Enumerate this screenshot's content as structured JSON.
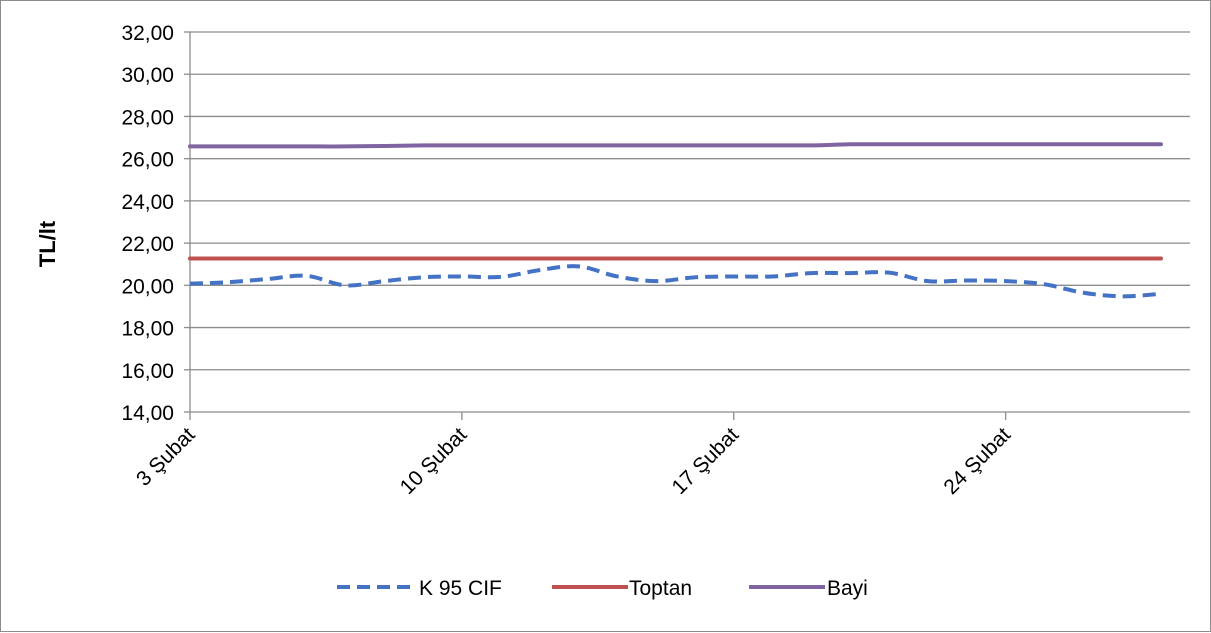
{
  "chart_data": {
    "type": "line",
    "title": "",
    "xlabel": "",
    "ylabel": "TL/lt",
    "ylim": [
      14,
      32
    ],
    "y_tick_step": 2,
    "y_tick_labels": [
      "14,00",
      "16,00",
      "18,00",
      "20,00",
      "22,00",
      "24,00",
      "26,00",
      "28,00",
      "30,00",
      "32,00"
    ],
    "x_tick_labels": [
      "3 Şubat",
      "10 Şubat",
      "17 Şubat",
      "24 Şubat"
    ],
    "x_days": [
      3,
      4,
      5,
      6,
      7,
      8,
      9,
      10,
      11,
      12,
      13,
      14,
      15,
      16,
      17,
      18,
      19,
      20,
      21,
      22,
      23,
      24,
      25,
      26,
      27,
      28
    ],
    "grid": true,
    "legend_position": "bottom",
    "series": [
      {
        "name": "K 95 CIF",
        "color": "#4472C4",
        "style": "dashed",
        "values": [
          20.08,
          20.15,
          20.3,
          20.45,
          20.0,
          20.2,
          20.38,
          20.42,
          20.4,
          20.72,
          20.9,
          20.42,
          20.2,
          20.38,
          20.42,
          20.42,
          20.58,
          20.58,
          20.6,
          20.2,
          20.23,
          20.2,
          20.05,
          19.65,
          19.48,
          19.6
        ]
      },
      {
        "name": "Toptan",
        "color": "#C0504D",
        "style": "solid",
        "values": [
          21.27,
          21.27,
          21.27,
          21.27,
          21.27,
          21.27,
          21.27,
          21.27,
          21.27,
          21.27,
          21.27,
          21.27,
          21.27,
          21.27,
          21.27,
          21.27,
          21.27,
          21.27,
          21.27,
          21.27,
          21.27,
          21.27,
          21.27,
          21.27,
          21.27,
          21.27
        ]
      },
      {
        "name": "Bayi",
        "color": "#8064A2",
        "style": "solid",
        "values": [
          26.58,
          26.58,
          26.58,
          26.58,
          26.58,
          26.6,
          26.63,
          26.63,
          26.63,
          26.63,
          26.63,
          26.63,
          26.63,
          26.63,
          26.63,
          26.63,
          26.63,
          26.68,
          26.68,
          26.68,
          26.68,
          26.68,
          26.68,
          26.68,
          26.68,
          26.68
        ]
      }
    ]
  }
}
